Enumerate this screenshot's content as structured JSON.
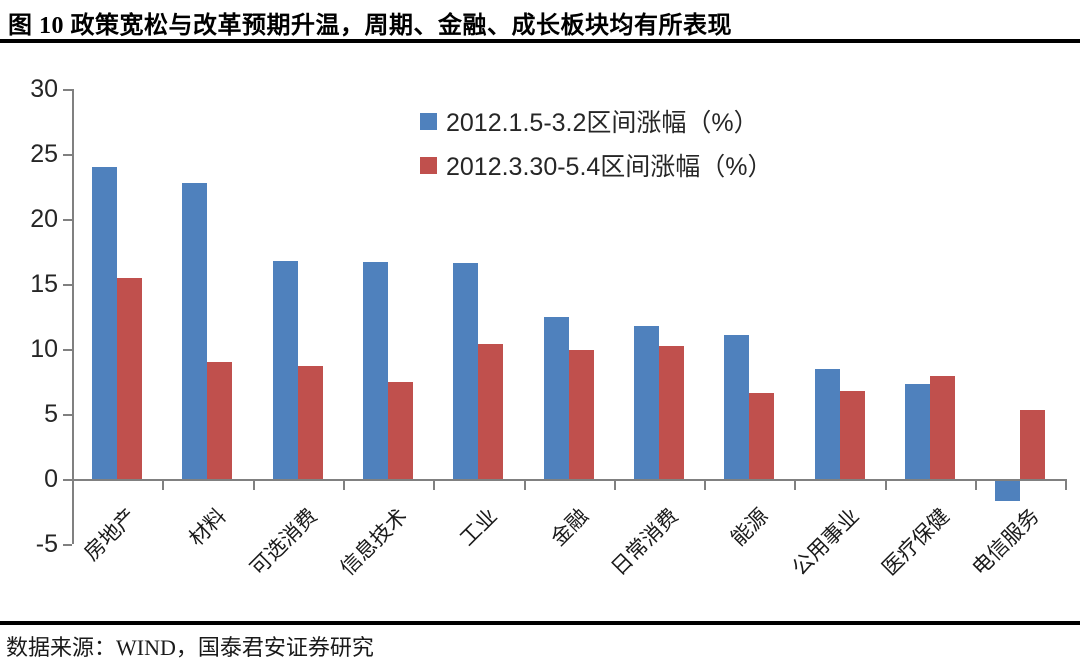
{
  "header": {
    "title": "图 10 政策宽松与改革预期升温，周期、金融、成长板块均有所表现"
  },
  "footer": {
    "source": "数据来源：WIND，国泰君安证券研究"
  },
  "chart_data": {
    "type": "bar",
    "title": "图 10 政策宽松与改革预期升温，周期、金融、成长板块均有所表现",
    "categories": [
      "房地产",
      "材料",
      "可选消费",
      "信息技术",
      "工业",
      "金融",
      "日常消费",
      "能源",
      "公用事业",
      "医疗保健",
      "电信服务"
    ],
    "series": [
      {
        "name": "2012.1.5-3.2区间涨幅（%）",
        "color": "#4F81BD",
        "values": [
          24.0,
          22.8,
          16.8,
          16.7,
          16.6,
          12.5,
          11.8,
          11.1,
          8.5,
          7.3,
          -1.5
        ]
      },
      {
        "name": "2012.3.30-5.4区间涨幅（%）",
        "color": "#C0504D",
        "values": [
          15.5,
          9.0,
          8.7,
          7.5,
          10.4,
          9.9,
          10.2,
          6.6,
          6.8,
          7.9,
          5.3
        ]
      }
    ],
    "ylabel": "",
    "xlabel": "",
    "ylim": [
      -5,
      30
    ],
    "ytick_step": 5,
    "yticks": [
      30,
      25,
      20,
      15,
      10,
      5,
      0,
      -5
    ],
    "grid": false,
    "legend_position": "inside-top-center",
    "axis_color": "#808080",
    "source": "数据来源：WIND，国泰君安证券研究"
  }
}
